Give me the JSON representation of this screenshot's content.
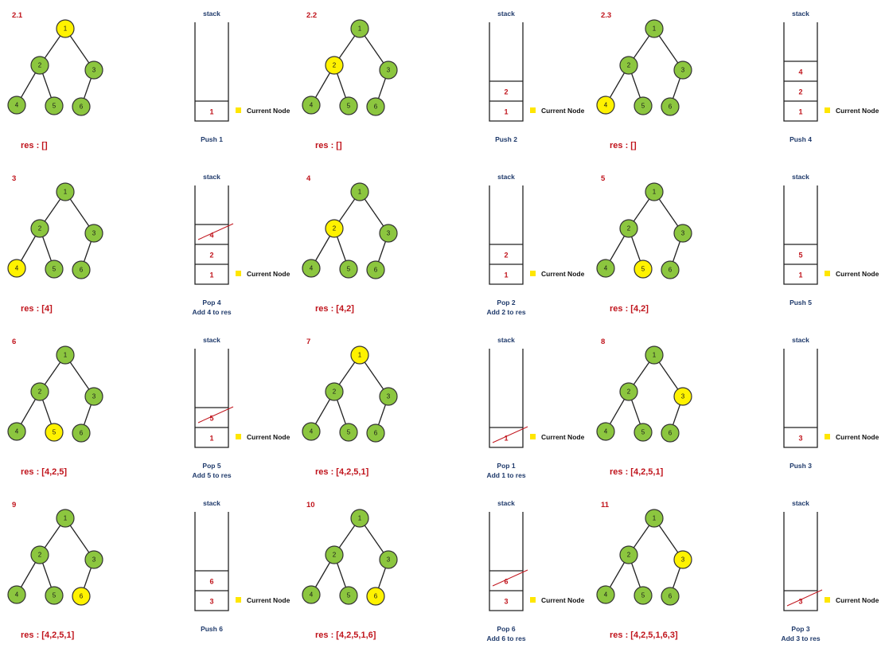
{
  "colors": {
    "visited": "#8cc63f",
    "current": "#fff200",
    "accent": "#c0141c",
    "caption": "#1f3a6b"
  },
  "stack_title": "stack",
  "current_node_label": "Current Node",
  "tree": {
    "nodes": [
      "1",
      "2",
      "3",
      "4",
      "5",
      "6"
    ]
  },
  "panels": [
    {
      "step": "2.1",
      "current": "1",
      "res": "res : []",
      "stack": [
        {
          "v": "1"
        }
      ],
      "ops": [
        "Push 1"
      ]
    },
    {
      "step": "2.2",
      "current": "2",
      "res": "res : []",
      "stack": [
        {
          "v": "1"
        },
        {
          "v": "2"
        }
      ],
      "ops": [
        "Push 2"
      ]
    },
    {
      "step": "2.3",
      "current": "4",
      "res": "res : []",
      "stack": [
        {
          "v": "1"
        },
        {
          "v": "2"
        },
        {
          "v": "4"
        }
      ],
      "ops": [
        "Push 4"
      ]
    },
    {
      "step": "3",
      "current": "4",
      "res": "res : [4]",
      "stack": [
        {
          "v": "1"
        },
        {
          "v": "2"
        },
        {
          "v": "4",
          "x": true
        }
      ],
      "ops": [
        "Pop 4",
        "Add 4 to res"
      ]
    },
    {
      "step": "4",
      "current": "2",
      "res": "res : [4,2]",
      "stack": [
        {
          "v": "1"
        },
        {
          "v": "2"
        }
      ],
      "ops": [
        "Pop 2",
        "Add 2 to res"
      ]
    },
    {
      "step": "5",
      "current": "5",
      "res": "res : [4,2]",
      "stack": [
        {
          "v": "1"
        },
        {
          "v": "5"
        }
      ],
      "ops": [
        "Push 5"
      ]
    },
    {
      "step": "6",
      "current": "5",
      "res": "res : [4,2,5]",
      "stack": [
        {
          "v": "1"
        },
        {
          "v": "5",
          "x": true
        }
      ],
      "ops": [
        "Pop 5",
        "Add 5 to res"
      ]
    },
    {
      "step": "7",
      "current": "1",
      "res": "res : [4,2,5,1]",
      "stack": [
        {
          "v": "1",
          "x": true
        }
      ],
      "ops": [
        "Pop 1",
        "Add 1 to res"
      ]
    },
    {
      "step": "8",
      "current": "3",
      "res": "res : [4,2,5,1]",
      "stack": [
        {
          "v": "3"
        }
      ],
      "ops": [
        "Push 3"
      ]
    },
    {
      "step": "9",
      "current": "6",
      "res": "res : [4,2,5,1]",
      "stack": [
        {
          "v": "3"
        },
        {
          "v": "6"
        }
      ],
      "ops": [
        "Push 6"
      ]
    },
    {
      "step": "10",
      "current": "6",
      "res": "res : [4,2,5,1,6]",
      "stack": [
        {
          "v": "3"
        },
        {
          "v": "6",
          "x": true
        }
      ],
      "ops": [
        "Pop 6",
        "Add 6 to res"
      ]
    },
    {
      "step": "11",
      "current": "3",
      "res": "res : [4,2,5,1,6,3]",
      "stack": [
        {
          "v": "3",
          "x": true
        }
      ],
      "ops": [
        "Pop 3",
        "Add 3 to res"
      ]
    }
  ]
}
